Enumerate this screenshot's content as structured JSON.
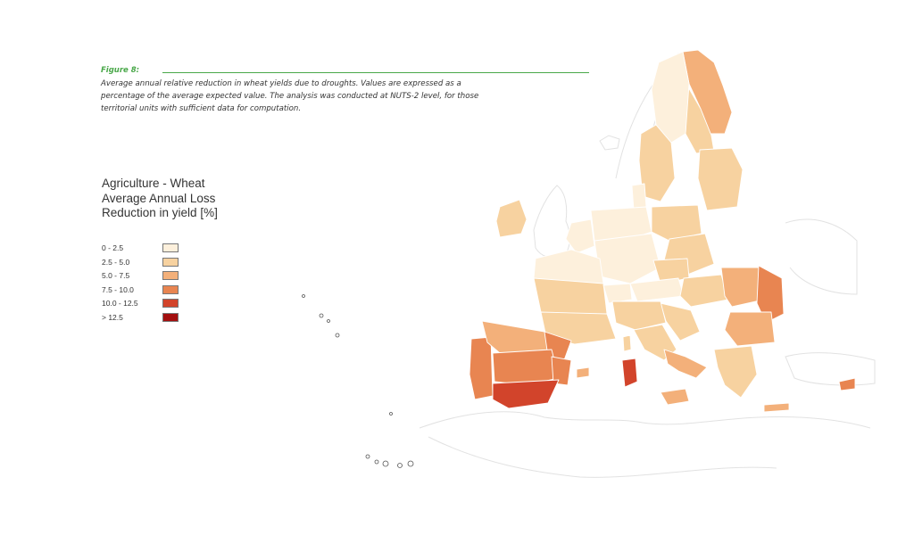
{
  "figure": {
    "label": "Figure 8:",
    "caption_lines": [
      "Average annual relative reduction in wheat yields due to droughts. Values are expressed as a",
      "percentage of the average expected value. The analysis was conducted at NUTS-2 level, for those",
      "territorial units with sufficient data for computation."
    ],
    "accent_color": "#4aa84a"
  },
  "legend": {
    "title_lines": [
      "Agriculture - Wheat",
      "Average Annual Loss",
      "Reduction in yield [%]"
    ],
    "classes": [
      {
        "label": "0 - 2.5",
        "color": "#fdf0dc"
      },
      {
        "label": "2.5 - 5.0",
        "color": "#f7d2a0"
      },
      {
        "label": "5.0 - 7.5",
        "color": "#f3b07a"
      },
      {
        "label": "7.5 - 10.0",
        "color": "#e88551"
      },
      {
        "label": "10.0 - 12.5",
        "color": "#d2442b"
      },
      {
        "label": "> 12.5",
        "color": "#a30f0f"
      }
    ]
  }
}
